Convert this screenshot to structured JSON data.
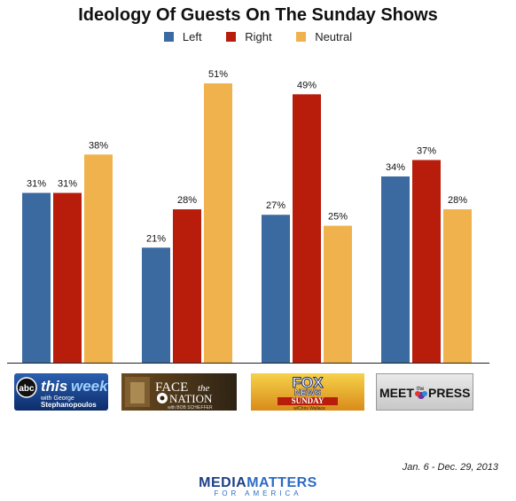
{
  "chart_data": {
    "type": "bar",
    "title": "Ideology Of Guests On The Sunday Shows",
    "categories": [
      "This Week with George Stephanopoulos",
      "Face the Nation with Bob Schieffer",
      "Fox News Sunday w/Chris Wallace",
      "Meet the Press"
    ],
    "series": [
      {
        "name": "Left",
        "values": [
          31,
          21,
          27,
          34
        ],
        "color": "#3b6aa0"
      },
      {
        "name": "Right",
        "values": [
          31,
          28,
          49,
          37
        ],
        "color": "#b81d0b"
      },
      {
        "name": "Neutral",
        "values": [
          38,
          51,
          25,
          28
        ],
        "color": "#f0b24d"
      }
    ],
    "value_suffix": "%",
    "ylim": [
      0,
      51
    ],
    "grid": false,
    "legend_position": "top-center"
  },
  "logos": {
    "abc": "abc this week with George Stephanopoulos",
    "face": "FACE the NATION with BOB SCHIEFFER",
    "fox": "FOX NEWS SUNDAY w/Chris Wallace",
    "meet": "MEET the PRESS"
  },
  "footer": {
    "date_range": "Jan. 6 - Dec. 29, 2013",
    "brand_part1": "MEDIA",
    "brand_part2": "MATTERS",
    "brand_tagline": "FOR AMERICA"
  }
}
